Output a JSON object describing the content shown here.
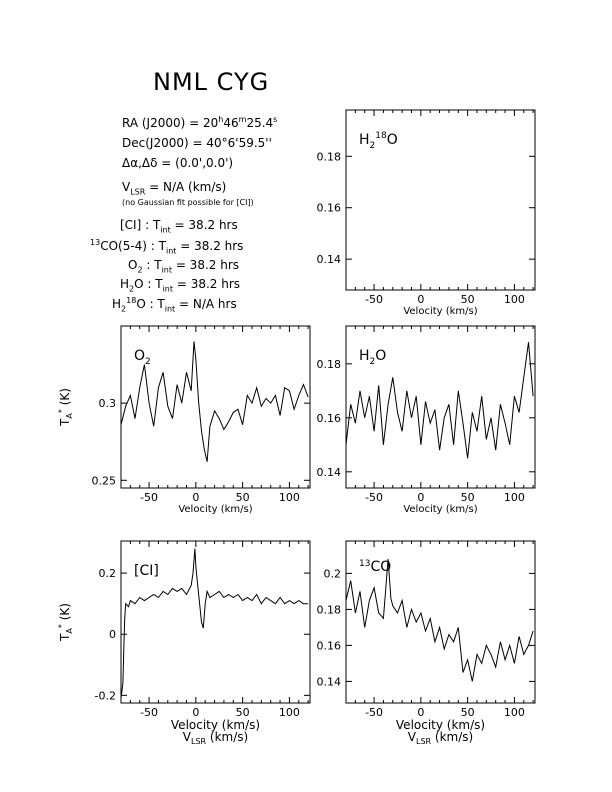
{
  "title": "NML CYG",
  "source_info": {
    "ra_label": "RA (J2000) =",
    "ra_h": "20",
    "ra_m": "46",
    "ra_s": "25.4",
    "dec_label": "Dec(J2000) =",
    "dec_value": "40°6'59.5''",
    "offset_label": "Δα,Δδ = (0.0',0.0')",
    "vlsr_label": "= N/A  (km/s)",
    "vlsr_note": "(no Gaussian fit possible for [CI])"
  },
  "integration_times": [
    {
      "pre": "",
      "name": "[CI]",
      "suffix": "",
      "value": "= 38.2 hrs"
    },
    {
      "pre": "13",
      "name": "CO(5-4)",
      "suffix": "",
      "value": "= 38.2 hrs"
    },
    {
      "pre": "",
      "name": "O",
      "sub": "2",
      "suffix": "",
      "value": "= 38.2 hrs"
    },
    {
      "pre": "",
      "name": "H",
      "sub": "2",
      "suffix": "O",
      "value": "= 38.2 hrs"
    },
    {
      "pre": "",
      "name": "H",
      "sub": "2",
      "sup": "18",
      "suffix": "O",
      "value": "= N/A  hrs"
    }
  ],
  "chart_data": [
    {
      "type": "line",
      "label": "H2 18O",
      "x": [],
      "y": [],
      "xlim": [
        -80,
        122
      ],
      "ylim": [
        0.128,
        0.198
      ],
      "xticks": [
        -50,
        0,
        50,
        100
      ],
      "yticks": [
        0.14,
        0.16,
        0.18
      ],
      "xlabel": "Velocity (km/s)",
      "ylabel": ""
    },
    {
      "type": "line",
      "label": "O2",
      "x": [
        -80,
        -75,
        -70,
        -65,
        -60,
        -55,
        -50,
        -45,
        -40,
        -35,
        -30,
        -25,
        -20,
        -15,
        -10,
        -5,
        -2,
        0,
        3,
        6,
        9,
        12,
        15,
        20,
        25,
        30,
        35,
        40,
        45,
        50,
        55,
        60,
        65,
        70,
        75,
        80,
        85,
        90,
        95,
        100,
        105,
        110,
        115,
        120
      ],
      "y": [
        0.286,
        0.298,
        0.305,
        0.29,
        0.31,
        0.325,
        0.3,
        0.285,
        0.31,
        0.32,
        0.298,
        0.29,
        0.312,
        0.3,
        0.32,
        0.308,
        0.34,
        0.328,
        0.3,
        0.282,
        0.27,
        0.262,
        0.285,
        0.295,
        0.29,
        0.283,
        0.288,
        0.294,
        0.296,
        0.286,
        0.305,
        0.3,
        0.31,
        0.298,
        0.303,
        0.3,
        0.305,
        0.292,
        0.31,
        0.308,
        0.296,
        0.305,
        0.312,
        0.304
      ],
      "xlim": [
        -80,
        122
      ],
      "ylim": [
        0.245,
        0.35
      ],
      "xticks": [
        -50,
        0,
        50,
        100
      ],
      "yticks": [
        0.25,
        0.3
      ],
      "xlabel": "Velocity (km/s)",
      "ylabel": "T_A* (K)"
    },
    {
      "type": "line",
      "label": "H2O",
      "x": [
        -80,
        -75,
        -70,
        -65,
        -60,
        -55,
        -50,
        -45,
        -40,
        -35,
        -30,
        -25,
        -20,
        -15,
        -10,
        -5,
        0,
        5,
        10,
        15,
        20,
        25,
        30,
        35,
        40,
        45,
        50,
        55,
        60,
        65,
        70,
        75,
        80,
        85,
        90,
        95,
        100,
        105,
        110,
        115,
        120
      ],
      "y": [
        0.15,
        0.165,
        0.158,
        0.17,
        0.16,
        0.168,
        0.155,
        0.172,
        0.15,
        0.165,
        0.175,
        0.162,
        0.155,
        0.17,
        0.16,
        0.168,
        0.15,
        0.166,
        0.158,
        0.163,
        0.148,
        0.16,
        0.165,
        0.15,
        0.17,
        0.158,
        0.145,
        0.162,
        0.155,
        0.168,
        0.152,
        0.16,
        0.148,
        0.165,
        0.158,
        0.15,
        0.168,
        0.162,
        0.175,
        0.188,
        0.168
      ],
      "xlim": [
        -80,
        122
      ],
      "ylim": [
        0.134,
        0.194
      ],
      "xticks": [
        -50,
        0,
        50,
        100
      ],
      "yticks": [
        0.14,
        0.16,
        0.18
      ],
      "xlabel": "Velocity (km/s)",
      "ylabel": ""
    },
    {
      "type": "line",
      "label": "[CI]",
      "x": [
        -80,
        -78,
        -77,
        -76,
        -75,
        -72,
        -70,
        -65,
        -60,
        -55,
        -50,
        -45,
        -40,
        -35,
        -30,
        -25,
        -20,
        -15,
        -10,
        -5,
        -3,
        -1,
        0,
        2,
        4,
        6,
        8,
        10,
        12,
        15,
        20,
        25,
        30,
        35,
        40,
        45,
        50,
        55,
        60,
        65,
        70,
        75,
        80,
        85,
        90,
        95,
        100,
        105,
        110,
        115,
        120
      ],
      "y": [
        -0.21,
        -0.16,
        -0.05,
        0.05,
        0.1,
        0.09,
        0.11,
        0.1,
        0.12,
        0.11,
        0.12,
        0.13,
        0.12,
        0.14,
        0.13,
        0.15,
        0.14,
        0.15,
        0.13,
        0.16,
        0.2,
        0.28,
        0.22,
        0.16,
        0.1,
        0.04,
        0.02,
        0.1,
        0.14,
        0.12,
        0.13,
        0.14,
        0.12,
        0.13,
        0.12,
        0.13,
        0.11,
        0.12,
        0.11,
        0.13,
        0.1,
        0.12,
        0.11,
        0.1,
        0.12,
        0.1,
        0.11,
        0.1,
        0.11,
        0.1,
        0.1
      ],
      "xlim": [
        -80,
        122
      ],
      "ylim": [
        -0.225,
        0.305
      ],
      "xticks": [
        -50,
        0,
        50,
        100
      ],
      "yticks": [
        -0.2,
        0,
        0.2
      ],
      "xlabel": "V_LSR (km/s)",
      "ylabel": "T_A* (K)"
    },
    {
      "type": "line",
      "label": "13CO",
      "x": [
        -80,
        -75,
        -70,
        -65,
        -60,
        -55,
        -50,
        -45,
        -40,
        -35,
        -32,
        -30,
        -25,
        -20,
        -15,
        -10,
        -5,
        0,
        5,
        10,
        15,
        20,
        25,
        30,
        35,
        40,
        45,
        50,
        55,
        60,
        65,
        70,
        75,
        80,
        85,
        90,
        95,
        100,
        105,
        110,
        115,
        120
      ],
      "y": [
        0.185,
        0.196,
        0.178,
        0.19,
        0.17,
        0.185,
        0.192,
        0.178,
        0.175,
        0.208,
        0.186,
        0.182,
        0.178,
        0.185,
        0.17,
        0.18,
        0.173,
        0.178,
        0.168,
        0.175,
        0.162,
        0.17,
        0.158,
        0.166,
        0.162,
        0.17,
        0.145,
        0.152,
        0.14,
        0.155,
        0.15,
        0.16,
        0.155,
        0.148,
        0.162,
        0.152,
        0.16,
        0.15,
        0.165,
        0.155,
        0.16,
        0.168
      ],
      "xlim": [
        -80,
        122
      ],
      "ylim": [
        0.128,
        0.218
      ],
      "xticks": [
        -50,
        0,
        50,
        100
      ],
      "yticks": [
        0.14,
        0.16,
        0.18,
        0.2
      ],
      "xlabel": "V_LSR (km/s)",
      "ylabel": ""
    }
  ]
}
